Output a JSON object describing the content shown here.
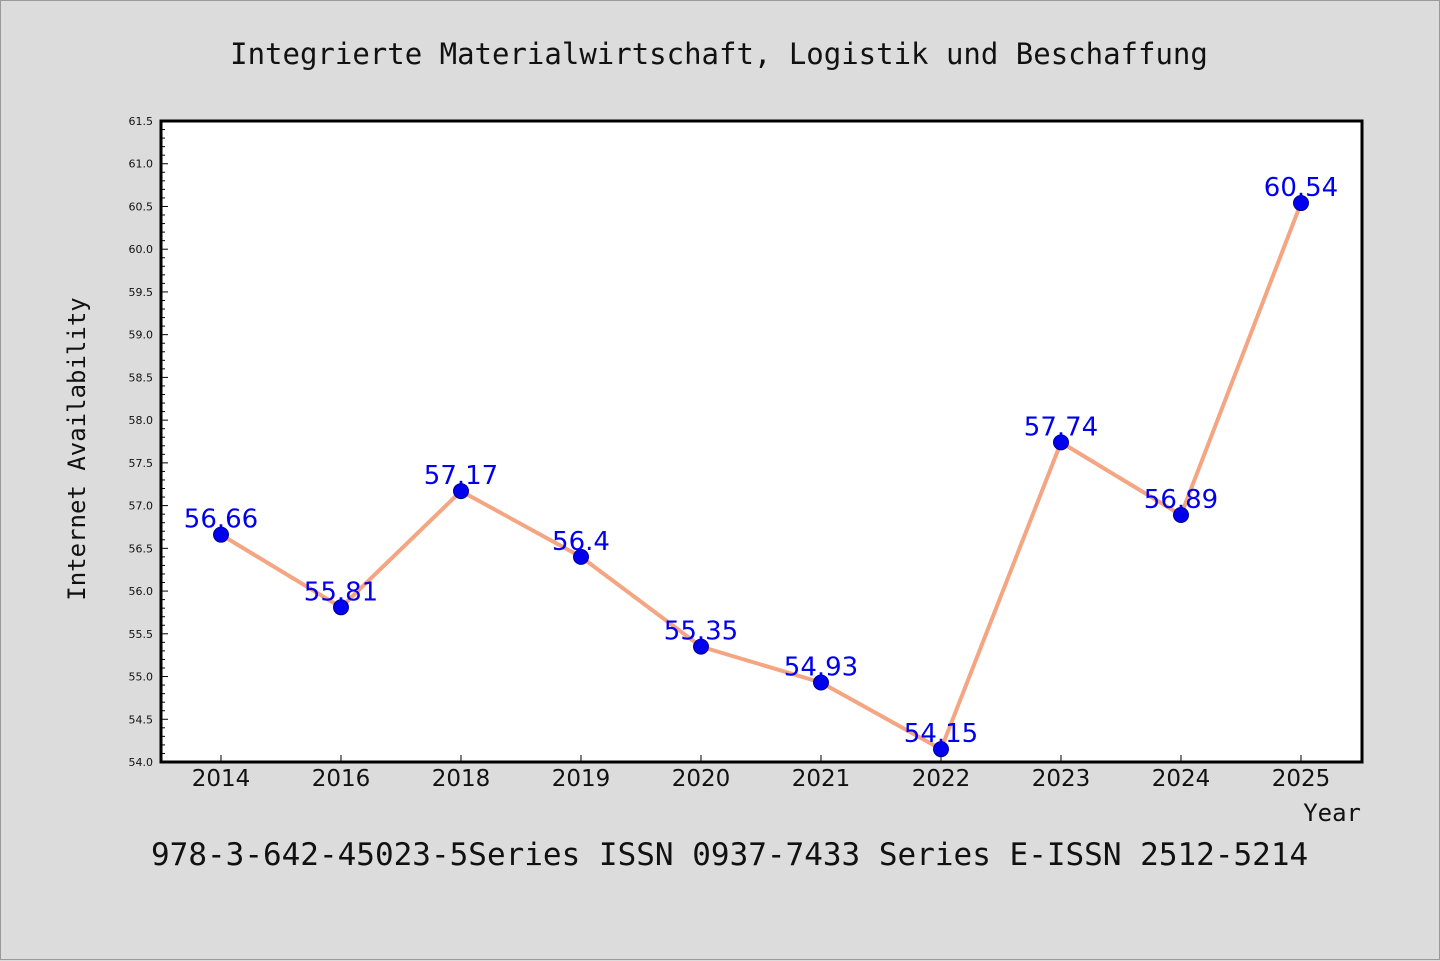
{
  "chart_data": {
    "type": "line",
    "title": "Integrierte Materialwirtschaft, Logistik und Beschaffung",
    "xlabel": "Year",
    "ylabel": "Internet Availability",
    "categories": [
      "2014",
      "2016",
      "2018",
      "2019",
      "2020",
      "2021",
      "2022",
      "2023",
      "2024",
      "2025"
    ],
    "series": [
      {
        "values": [
          56.66,
          55.81,
          57.17,
          56.4,
          55.35,
          54.93,
          54.15,
          57.74,
          56.89,
          60.54
        ],
        "data_labels": [
          "56.66",
          "55.81",
          "57.17",
          "56.4",
          "55.35",
          "54.93",
          "54.15",
          "57.74",
          "56.89",
          "60.54"
        ],
        "line_color": "#f4a582",
        "marker_color": "#0000ee"
      }
    ],
    "ylim": [
      54.0,
      61.5
    ],
    "yticks": [
      "54.0",
      "54.5",
      "55.0",
      "55.5",
      "56.0",
      "56.5",
      "57.0",
      "57.5",
      "58.0",
      "58.5",
      "59.0",
      "59.5",
      "60.0",
      "60.5",
      "61.0",
      "61.5"
    ],
    "label_color": "#0000ee",
    "grid": false,
    "legend": "none",
    "footer": "978-3-642-45023-5Series ISSN 0937-7433 Series E-ISSN 2512-5214"
  }
}
